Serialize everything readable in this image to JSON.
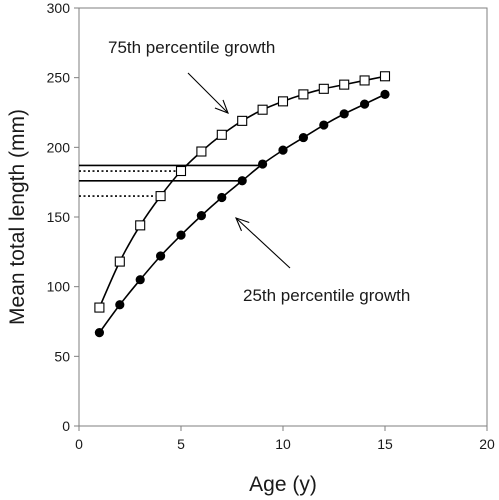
{
  "chart_data": {
    "type": "line",
    "title": "",
    "xlabel": "Age (y)",
    "ylabel": "Mean total length (mm)",
    "xlim": [
      0,
      20
    ],
    "ylim": [
      0,
      300
    ],
    "x_ticks": [
      0,
      5,
      10,
      15,
      20
    ],
    "y_ticks": [
      0,
      50,
      100,
      150,
      200,
      250,
      300
    ],
    "grid": false,
    "legend": "none",
    "series": [
      {
        "marker": "open-square",
        "x": [
          1,
          2,
          3,
          4,
          5,
          6,
          7,
          8,
          9,
          10,
          11,
          12,
          13,
          14,
          15
        ],
        "y": [
          85,
          118,
          144,
          165,
          183,
          197,
          209,
          219,
          227,
          233,
          238,
          242,
          245,
          248,
          251
        ]
      },
      {
        "marker": "filled-circle",
        "x": [
          1,
          2,
          3,
          4,
          5,
          6,
          7,
          8,
          9,
          10,
          11,
          12,
          13,
          14,
          15
        ],
        "y": [
          67,
          87,
          105,
          122,
          137,
          151,
          164,
          176,
          188,
          198,
          207,
          216,
          224,
          231,
          238
        ]
      }
    ],
    "reference_lines": [
      {
        "style": "solid",
        "y": 187,
        "x_from": 0,
        "x_to": 9
      },
      {
        "style": "solid",
        "y": 176,
        "x_from": 0,
        "x_to": 8
      },
      {
        "style": "dotted",
        "y": 183,
        "x_from": 0,
        "x_to": 5
      },
      {
        "style": "dotted",
        "y": 165,
        "x_from": 0,
        "x_to": 4
      }
    ],
    "annotations": [
      {
        "text": "75th percentile growth"
      },
      {
        "text": "25th percentile growth"
      }
    ]
  }
}
